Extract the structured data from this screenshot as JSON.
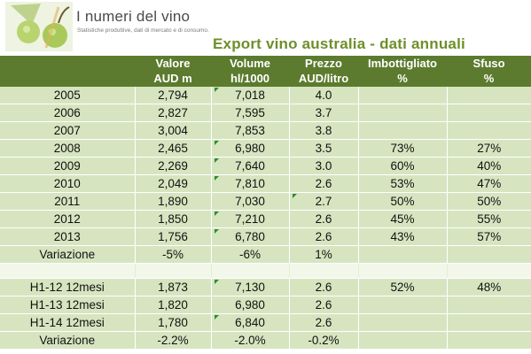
{
  "header": {
    "brand": "I numeri del vino",
    "tagline": "Statistiche produttive, dati di mercato e di consumo."
  },
  "title": "Export vino australia - dati annuali",
  "columns": [
    [
      "",
      ""
    ],
    [
      "Valore",
      "AUD m"
    ],
    [
      "Volume",
      "hl/1000"
    ],
    [
      "Prezzo",
      "AUD/litro"
    ],
    [
      "Imbottigliato",
      "%"
    ],
    [
      "Sfuso",
      "%"
    ]
  ],
  "rows": [
    [
      "2005",
      "2,794",
      "7,018",
      "4.0",
      "",
      ""
    ],
    [
      "2006",
      "2,827",
      "7,595",
      "3.7",
      "",
      ""
    ],
    [
      "2007",
      "3,004",
      "7,853",
      "3.8",
      "",
      ""
    ],
    [
      "2008",
      "2,465",
      "6,980",
      "3.5",
      "73%",
      "27%"
    ],
    [
      "2009",
      "2,269",
      "7,640",
      "3.0",
      "60%",
      "40%"
    ],
    [
      "2010",
      "2,049",
      "7,810",
      "2.6",
      "53%",
      "47%"
    ],
    [
      "2011",
      "1,890",
      "7,030",
      "2.7",
      "50%",
      "50%"
    ],
    [
      "2012",
      "1,850",
      "7,210",
      "2.6",
      "45%",
      "55%"
    ],
    [
      "2013",
      "1,756",
      "6,780",
      "2.6",
      "43%",
      "57%"
    ],
    [
      "Variazione",
      "-5%",
      "-6%",
      "1%",
      "",
      ""
    ],
    [
      "",
      "",
      "",
      "",
      "",
      ""
    ],
    [
      "H1-12 12mesi",
      "1,873",
      "7,130",
      "2.6",
      "52%",
      "48%"
    ],
    [
      "H1-13 12mesi",
      "1,820",
      "6,980",
      "2.6",
      "",
      ""
    ],
    [
      "H1-14 12mesi",
      "1,780",
      "6,840",
      "2.6",
      "",
      ""
    ],
    [
      "Variazione",
      "-2.2%",
      "-2.0%",
      "-0.2%",
      "",
      ""
    ]
  ],
  "colors": {
    "header_bg": "#5c7b2e",
    "row_bg": "#d6e5c0",
    "title": "#6e8f2a",
    "marker": "#2e8b2e"
  }
}
